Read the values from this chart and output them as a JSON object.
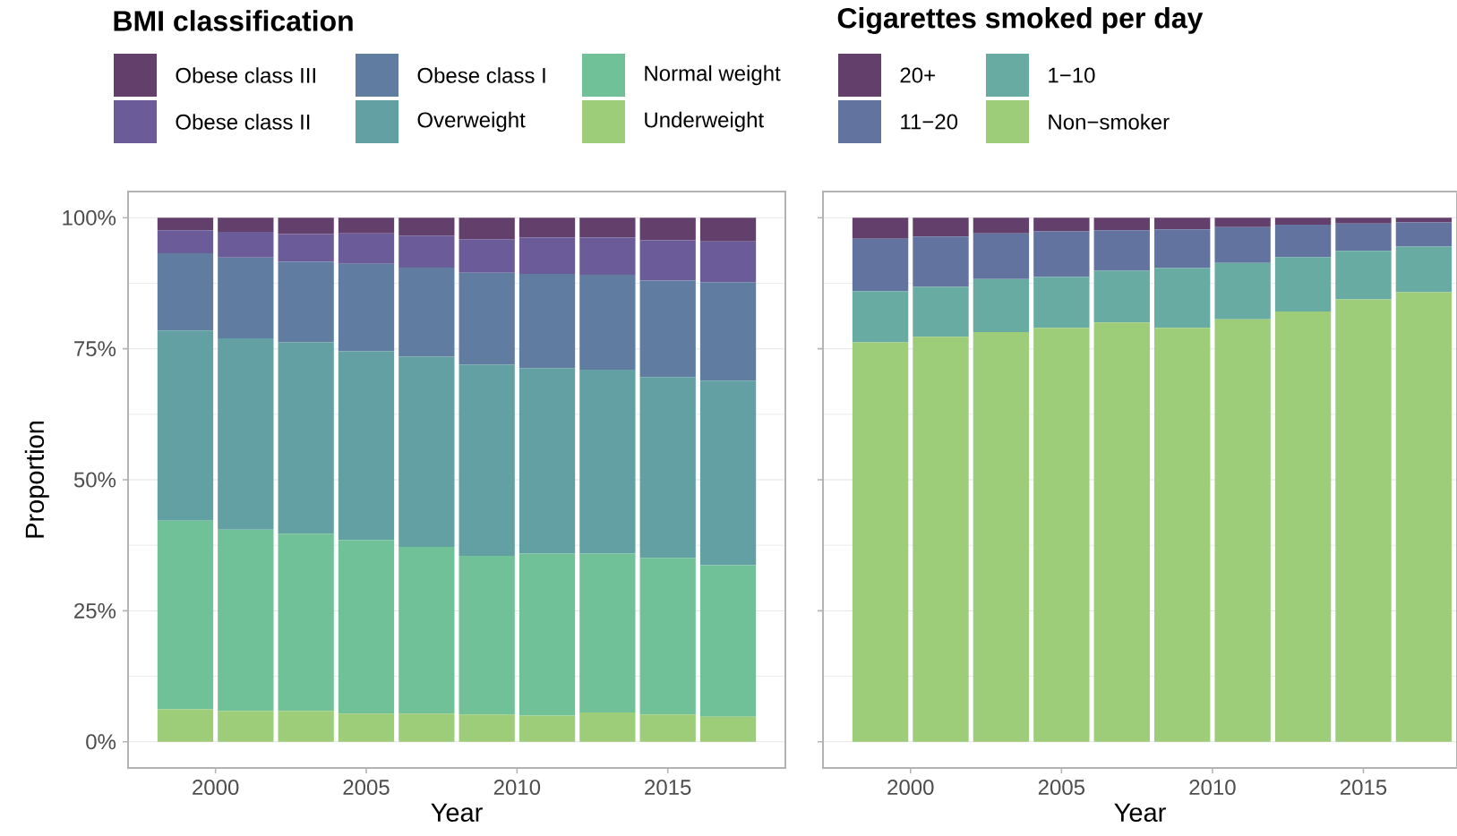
{
  "chart_data": [
    {
      "type": "bar",
      "legend_title": "BMI classification",
      "xlabel": "Year",
      "ylabel": "Proportion",
      "stacked": true,
      "grid": "y",
      "legend": "top",
      "x": [
        1999,
        2001,
        2003,
        2005,
        2007,
        2009,
        2011,
        2013,
        2015,
        2017
      ],
      "xlim": [
        1997.1,
        2018.9
      ],
      "xticks": [
        2000,
        2005,
        2010,
        2015
      ],
      "ylim": [
        -5,
        105
      ],
      "yticks": [
        {
          "value": 0,
          "label": "0%"
        },
        {
          "value": 25,
          "label": "25%"
        },
        {
          "value": 50,
          "label": "50%"
        },
        {
          "value": 75,
          "label": "75%"
        },
        {
          "value": 100,
          "label": "100%"
        }
      ],
      "series": [
        {
          "name": "Underweight",
          "color": "#9ecd79",
          "values": [
            6.2,
            5.9,
            5.9,
            5.4,
            5.4,
            5.2,
            5.0,
            5.6,
            5.2,
            4.8
          ]
        },
        {
          "name": "Normal weight",
          "color": "#70c198",
          "values": [
            36.0,
            34.6,
            33.8,
            33.1,
            31.8,
            30.3,
            30.9,
            30.3,
            29.9,
            28.9
          ]
        },
        {
          "name": "Overweight",
          "color": "#63a0a3",
          "values": [
            36.3,
            36.5,
            36.5,
            36.0,
            36.3,
            36.5,
            35.4,
            35.1,
            34.5,
            35.2
          ]
        },
        {
          "name": "Obese class I",
          "color": "#607da1",
          "values": [
            14.7,
            15.4,
            15.4,
            16.7,
            17.0,
            17.5,
            18.0,
            18.1,
            18.4,
            18.8
          ]
        },
        {
          "name": "Obese class II",
          "color": "#6b5b99",
          "values": [
            4.4,
            4.9,
            5.3,
            5.8,
            6.1,
            6.4,
            6.9,
            7.1,
            7.7,
            7.8
          ]
        },
        {
          "name": "Obese class III",
          "color": "#633f6b",
          "values": [
            2.4,
            2.7,
            3.1,
            3.0,
            3.4,
            4.1,
            3.8,
            3.8,
            4.3,
            4.5
          ]
        }
      ]
    },
    {
      "type": "bar",
      "legend_title": "Cigarettes smoked per day",
      "xlabel": "Year",
      "stacked": true,
      "grid": "y",
      "legend": "top",
      "tick_labels": "x",
      "x": [
        1999,
        2001,
        2003,
        2005,
        2007,
        2009,
        2011,
        2013,
        2015,
        2017
      ],
      "xlim": [
        1997.1,
        2018.1
      ],
      "xticks": [
        2000,
        2005,
        2010,
        2015
      ],
      "ylim": [
        -5,
        105
      ],
      "yticks": [
        {
          "value": 0,
          "label": null
        },
        {
          "value": 25,
          "label": null
        },
        {
          "value": 50,
          "label": null
        },
        {
          "value": 75,
          "label": null
        },
        {
          "value": 100,
          "label": null
        }
      ],
      "series": [
        {
          "name": "Non−smoker",
          "color": "#9ecd79",
          "values": [
            76.2,
            77.3,
            78.2,
            79.0,
            80.0,
            79.0,
            80.6,
            82.1,
            84.4,
            85.8
          ]
        },
        {
          "name": "1−10",
          "color": "#67aba3",
          "values": [
            9.8,
            9.5,
            10.1,
            9.7,
            9.9,
            11.4,
            10.8,
            10.4,
            9.3,
            8.7
          ]
        },
        {
          "name": "11−20",
          "color": "#6373a0",
          "values": [
            10.0,
            9.6,
            8.7,
            8.7,
            7.7,
            7.4,
            6.8,
            6.2,
            5.2,
            4.6
          ]
        },
        {
          "name": "20+",
          "color": "#633f6b",
          "values": [
            4.0,
            3.6,
            3.0,
            2.6,
            2.4,
            2.2,
            1.8,
            1.3,
            1.1,
            0.9
          ]
        }
      ]
    }
  ]
}
